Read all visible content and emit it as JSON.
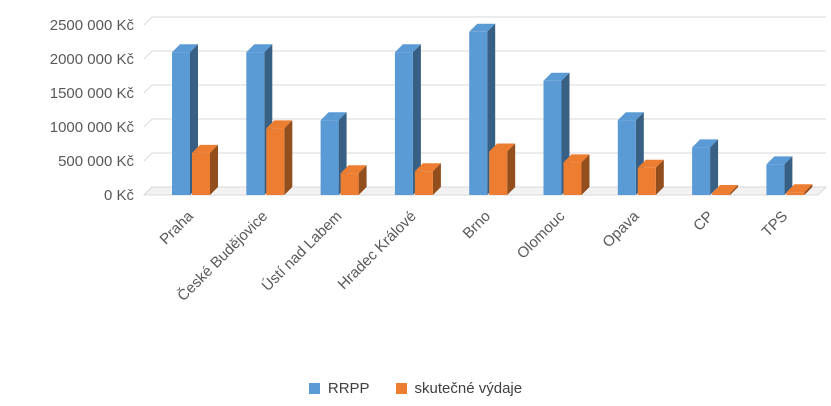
{
  "chart_data": {
    "type": "bar",
    "title": "",
    "categories": [
      "Praha",
      "České Budějovice",
      "Ústí nad Labem",
      "Hradec Králové",
      "Brno",
      "Olomouc",
      "Opava",
      "CP",
      "TPS"
    ],
    "series": [
      {
        "name": "RRPP",
        "values": [
          2100000,
          2100000,
          1100000,
          2100000,
          2400000,
          1680000,
          1100000,
          700000,
          450000
        ],
        "color": "#5B9BD5"
      },
      {
        "name": "skutečné výdaje",
        "values": [
          620000,
          980000,
          320000,
          350000,
          640000,
          480000,
          400000,
          30000,
          40000
        ],
        "color": "#ED7D31"
      }
    ],
    "ylim": [
      0,
      2500000
    ],
    "yticks": [
      "0 Kč",
      "500 000 Kč",
      "1000 000 Kč",
      "1500 000 Kč",
      "2000 000 Kč",
      "2500 000 Kč"
    ],
    "grid": true,
    "legend_position": "bottom",
    "style": "3d-column"
  }
}
